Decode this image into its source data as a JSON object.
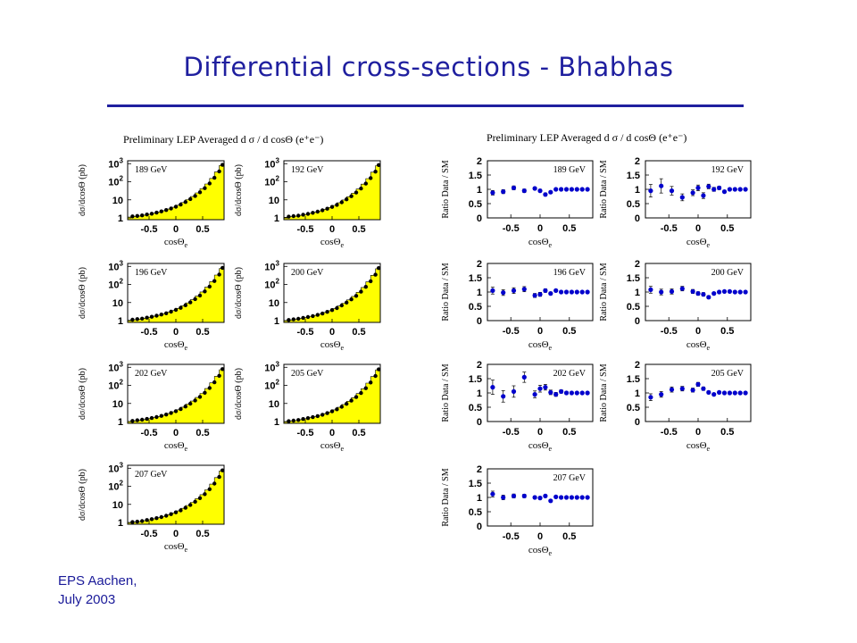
{
  "slide": {
    "title": "Differential cross-sections  - Bhabhas",
    "footer_line1": "EPS Aachen,",
    "footer_line2": "July 2003"
  },
  "colors": {
    "title": "#1f1f9f",
    "fill": "#ffff00",
    "points": "#0000cc",
    "text": "#000000"
  },
  "chart_data": [
    {
      "type": "area",
      "group": "cross-sections",
      "title": "Preliminary LEP Averaged  d σ / d cosΘ (e⁺e⁻)",
      "ylabel": "dσ/dcosΘ (pb)",
      "xlabel": "cosΘe",
      "y_scale": "log",
      "y_ticks": [
        "1",
        "10",
        "10²",
        "10³"
      ],
      "x_ticks": [
        "-0.5",
        "0",
        "0.5"
      ],
      "xlim": [
        -0.9,
        0.9
      ],
      "ylim": [
        1,
        1500
      ],
      "x": [
        -0.81,
        -0.72,
        -0.63,
        -0.54,
        -0.45,
        -0.36,
        -0.27,
        -0.18,
        -0.09,
        0.0,
        0.09,
        0.18,
        0.27,
        0.36,
        0.45,
        0.54,
        0.63,
        0.72,
        0.81,
        0.87
      ],
      "panels": [
        {
          "label": "189 GeV",
          "values": [
            1.5,
            1.6,
            1.7,
            1.9,
            2.1,
            2.4,
            2.8,
            3.3,
            4.0,
            5.0,
            6.5,
            9.0,
            13,
            19,
            30,
            50,
            90,
            180,
            400,
            900
          ]
        },
        {
          "label": "192 GeV",
          "values": [
            1.45,
            1.55,
            1.65,
            1.85,
            2.05,
            2.35,
            2.7,
            3.2,
            3.9,
            4.9,
            6.3,
            8.7,
            12.5,
            18.5,
            29,
            48,
            88,
            175,
            390,
            880
          ]
        },
        {
          "label": "196 GeV",
          "values": [
            1.4,
            1.5,
            1.6,
            1.8,
            2.0,
            2.3,
            2.65,
            3.1,
            3.8,
            4.7,
            6.1,
            8.4,
            12,
            18,
            28,
            47,
            85,
            170,
            380,
            860
          ]
        },
        {
          "label": "200 GeV",
          "values": [
            1.35,
            1.45,
            1.55,
            1.75,
            1.95,
            2.2,
            2.55,
            3.0,
            3.7,
            4.6,
            5.9,
            8.2,
            11.7,
            17.5,
            27,
            45,
            82,
            165,
            370,
            840
          ]
        },
        {
          "label": "202 GeV",
          "values": [
            1.35,
            1.45,
            1.55,
            1.72,
            1.92,
            2.18,
            2.5,
            2.95,
            3.6,
            4.5,
            5.8,
            8.0,
            11.5,
            17,
            26.5,
            44,
            80,
            162,
            365,
            830
          ]
        },
        {
          "label": "205 GeV",
          "values": [
            1.3,
            1.4,
            1.5,
            1.7,
            1.9,
            2.15,
            2.45,
            2.9,
            3.55,
            4.4,
            5.7,
            7.8,
            11.2,
            16.6,
            26,
            43,
            78,
            158,
            355,
            810
          ]
        },
        {
          "label": "207 GeV",
          "values": [
            1.3,
            1.38,
            1.48,
            1.68,
            1.88,
            2.12,
            2.42,
            2.85,
            3.5,
            4.35,
            5.6,
            7.7,
            11,
            16.3,
            25.5,
            42,
            77,
            155,
            350,
            800
          ]
        }
      ]
    },
    {
      "type": "scatter",
      "group": "ratios",
      "title": "Preliminary LEP Averaged  d σ / d cosΘ (e⁺e⁻)",
      "ylabel": "Ratio Data / SM",
      "xlabel": "cosΘe",
      "y_ticks": [
        "0",
        "0.5",
        "1",
        "1.5",
        "2"
      ],
      "x_ticks": [
        "-0.5",
        "0",
        "0.5"
      ],
      "xlim": [
        -0.9,
        0.9
      ],
      "ylim": [
        0,
        2
      ],
      "panels": [
        {
          "label": "189 GeV",
          "x": [
            -0.81,
            -0.63,
            -0.45,
            -0.27,
            -0.09,
            0.0,
            0.09,
            0.18,
            0.27,
            0.36,
            0.45,
            0.54,
            0.63,
            0.72,
            0.81
          ],
          "values": [
            0.88,
            0.92,
            1.05,
            0.95,
            1.03,
            0.95,
            0.82,
            0.9,
            1.0,
            1.0,
            1.0,
            1.0,
            1.0,
            1.0,
            1.0
          ],
          "errors": [
            0.08,
            0.07,
            0.07,
            0.06,
            0.05,
            0.05,
            0.05,
            0.04,
            0.03,
            0.03,
            0.02,
            0.02,
            0.02,
            0.02,
            0.02
          ]
        },
        {
          "label": "192 GeV",
          "x": [
            -0.81,
            -0.63,
            -0.45,
            -0.27,
            -0.09,
            0.0,
            0.09,
            0.18,
            0.27,
            0.36,
            0.45,
            0.54,
            0.63,
            0.72,
            0.81
          ],
          "values": [
            0.95,
            1.12,
            0.95,
            0.72,
            0.88,
            1.05,
            0.78,
            1.1,
            1.0,
            1.05,
            0.92,
            1.0,
            1.0,
            1.0,
            1.0
          ],
          "errors": [
            0.22,
            0.25,
            0.15,
            0.12,
            0.1,
            0.1,
            0.1,
            0.08,
            0.07,
            0.06,
            0.05,
            0.04,
            0.03,
            0.03,
            0.03
          ]
        },
        {
          "label": "196 GeV",
          "x": [
            -0.81,
            -0.63,
            -0.45,
            -0.27,
            -0.09,
            0.0,
            0.09,
            0.18,
            0.27,
            0.36,
            0.45,
            0.54,
            0.63,
            0.72,
            0.81
          ],
          "values": [
            1.05,
            0.98,
            1.05,
            1.1,
            0.88,
            0.92,
            1.05,
            0.95,
            1.05,
            1.0,
            1.0,
            1.0,
            1.0,
            1.0,
            1.0
          ],
          "errors": [
            0.12,
            0.1,
            0.1,
            0.09,
            0.07,
            0.07,
            0.06,
            0.05,
            0.04,
            0.03,
            0.03,
            0.02,
            0.02,
            0.02,
            0.02
          ]
        },
        {
          "label": "200 GeV",
          "x": [
            -0.81,
            -0.63,
            -0.45,
            -0.27,
            -0.09,
            0.0,
            0.09,
            0.18,
            0.27,
            0.36,
            0.45,
            0.54,
            0.63,
            0.72,
            0.81
          ],
          "values": [
            1.08,
            1.0,
            1.02,
            1.12,
            1.02,
            0.95,
            0.92,
            0.82,
            0.95,
            1.0,
            1.02,
            1.02,
            1.0,
            1.0,
            1.0
          ],
          "errors": [
            0.12,
            0.1,
            0.09,
            0.08,
            0.07,
            0.06,
            0.06,
            0.05,
            0.04,
            0.03,
            0.03,
            0.02,
            0.02,
            0.02,
            0.02
          ]
        },
        {
          "label": "202 GeV",
          "x": [
            -0.81,
            -0.63,
            -0.45,
            -0.27,
            -0.09,
            0.0,
            0.09,
            0.18,
            0.27,
            0.36,
            0.45,
            0.54,
            0.63,
            0.72,
            0.81
          ],
          "values": [
            1.2,
            0.88,
            1.05,
            1.55,
            0.95,
            1.15,
            1.2,
            1.02,
            0.95,
            1.05,
            1.0,
            1.0,
            1.0,
            1.0,
            1.0
          ],
          "errors": [
            0.25,
            0.2,
            0.2,
            0.18,
            0.12,
            0.12,
            0.1,
            0.08,
            0.07,
            0.06,
            0.05,
            0.03,
            0.03,
            0.03,
            0.03
          ]
        },
        {
          "label": "205 GeV",
          "x": [
            -0.81,
            -0.63,
            -0.45,
            -0.27,
            -0.09,
            0.0,
            0.09,
            0.18,
            0.27,
            0.36,
            0.45,
            0.54,
            0.63,
            0.72,
            0.81
          ],
          "values": [
            0.85,
            0.95,
            1.12,
            1.15,
            1.1,
            1.3,
            1.15,
            1.02,
            0.95,
            1.02,
            1.0,
            1.0,
            1.0,
            1.0,
            1.0
          ],
          "errors": [
            0.12,
            0.1,
            0.09,
            0.08,
            0.07,
            0.07,
            0.06,
            0.05,
            0.04,
            0.03,
            0.03,
            0.02,
            0.02,
            0.02,
            0.02
          ]
        },
        {
          "label": "207 GeV",
          "x": [
            -0.81,
            -0.63,
            -0.45,
            -0.27,
            -0.09,
            0.0,
            0.09,
            0.18,
            0.27,
            0.36,
            0.45,
            0.54,
            0.63,
            0.72,
            0.81
          ],
          "values": [
            1.12,
            1.0,
            1.05,
            1.05,
            1.0,
            0.98,
            1.05,
            0.88,
            1.02,
            1.0,
            1.0,
            1.0,
            1.0,
            1.0,
            1.0
          ],
          "errors": [
            0.1,
            0.08,
            0.07,
            0.06,
            0.05,
            0.05,
            0.04,
            0.04,
            0.03,
            0.03,
            0.02,
            0.02,
            0.02,
            0.02,
            0.02
          ]
        }
      ]
    }
  ]
}
